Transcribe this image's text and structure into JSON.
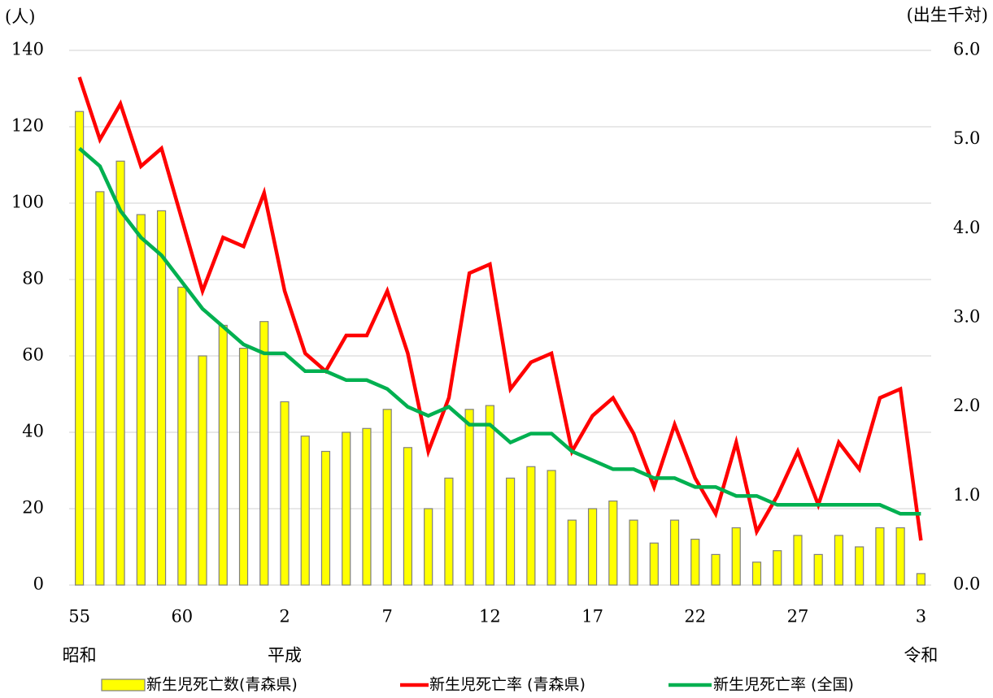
{
  "chart_data": {
    "type": "combo",
    "y_label": "(人)",
    "y2_label": "(出生千対)",
    "categories": [
      "55",
      null,
      null,
      null,
      null,
      "60",
      null,
      null,
      null,
      null,
      "2",
      null,
      null,
      null,
      null,
      "7",
      null,
      null,
      null,
      null,
      "12",
      null,
      null,
      null,
      null,
      "17",
      null,
      null,
      null,
      null,
      "22",
      null,
      null,
      null,
      null,
      "27",
      null,
      null,
      null,
      null,
      null,
      "3"
    ],
    "categories2": [
      "昭和",
      null,
      null,
      null,
      null,
      null,
      null,
      null,
      null,
      null,
      "平成",
      null,
      null,
      null,
      null,
      null,
      null,
      null,
      null,
      null,
      null,
      null,
      null,
      null,
      null,
      null,
      null,
      null,
      null,
      null,
      null,
      null,
      null,
      null,
      null,
      null,
      null,
      null,
      null,
      null,
      null,
      "令和"
    ],
    "series": [
      {
        "name": "新生児死亡数(青森県)",
        "type": "bar",
        "color": "#ffff00",
        "axis": "y",
        "values": [
          124,
          103,
          111,
          97,
          98,
          78,
          60,
          68,
          62,
          69,
          48,
          39,
          35,
          40,
          41,
          46,
          36,
          20,
          28,
          46,
          47,
          28,
          31,
          30,
          17,
          20,
          22,
          17,
          11,
          17,
          12,
          8,
          15,
          6,
          9,
          13,
          8,
          13,
          10,
          15,
          15,
          3
        ]
      },
      {
        "name": "新生児死亡率 (青森県)",
        "type": "line",
        "color": "#ff0000",
        "axis": "y2",
        "values": [
          5.7,
          5.0,
          5.4,
          4.7,
          4.9,
          4.1,
          3.3,
          3.9,
          3.8,
          4.4,
          3.3,
          2.6,
          2.4,
          2.8,
          2.8,
          3.3,
          2.6,
          1.5,
          2.1,
          3.5,
          3.6,
          2.2,
          2.5,
          2.6,
          1.5,
          1.9,
          2.1,
          1.7,
          1.1,
          1.8,
          1.2,
          0.8,
          1.6,
          0.6,
          1.0,
          1.5,
          0.9,
          1.6,
          1.3,
          2.1,
          2.2,
          0.5
        ]
      },
      {
        "name": "新生児死亡率 (全国)",
        "type": "line",
        "color": "#00b050",
        "axis": "y2",
        "values": [
          4.9,
          4.7,
          4.2,
          3.9,
          3.7,
          3.4,
          3.1,
          2.9,
          2.7,
          2.6,
          2.6,
          2.4,
          2.4,
          2.3,
          2.3,
          2.2,
          2.0,
          1.9,
          2.0,
          1.8,
          1.8,
          1.6,
          1.7,
          1.7,
          1.5,
          1.4,
          1.3,
          1.3,
          1.2,
          1.2,
          1.1,
          1.1,
          1.0,
          1.0,
          0.9,
          0.9,
          0.9,
          0.9,
          0.9,
          0.9,
          0.8,
          0.8
        ]
      }
    ],
    "ylim": [
      0,
      140
    ],
    "yticks": [
      0,
      20,
      40,
      60,
      80,
      100,
      120,
      140
    ],
    "y2lim": [
      0,
      6
    ],
    "y2ticks": [
      {
        "value": 0,
        "label": "0.0"
      },
      {
        "value": 1,
        "label": "1.0"
      },
      {
        "value": 2,
        "label": "2.0"
      },
      {
        "value": 3,
        "label": "3.0"
      },
      {
        "value": 4,
        "label": "4.0"
      },
      {
        "value": 5,
        "label": "5.0"
      },
      {
        "value": 6,
        "label": "6.0"
      }
    ],
    "grid": true,
    "legend": "bottom"
  }
}
